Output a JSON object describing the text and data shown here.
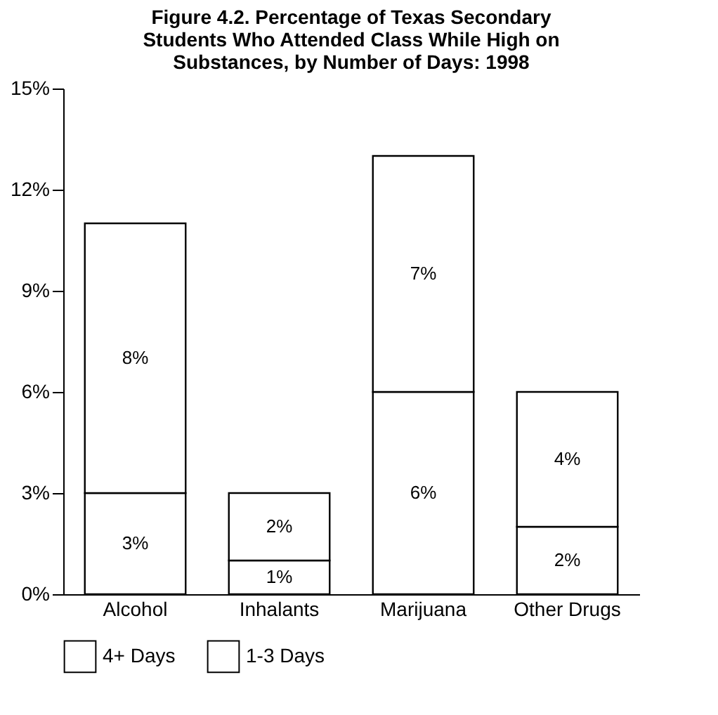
{
  "chart_data": {
    "type": "bar",
    "title": "Figure 4.2. Percentage of Texas Secondary Students Who Attended Class While High on Substances, by Number of Days: 1998",
    "categories": [
      "Alcohol",
      "Inhalants",
      "Marijuana",
      "Other Drugs"
    ],
    "stacked": true,
    "series": [
      {
        "name": "4+ Days",
        "color": "#ffffff",
        "values": [
          3,
          1,
          6,
          2
        ],
        "value_labels": [
          "3%",
          "1%",
          "6%",
          "2%"
        ]
      },
      {
        "name": "1-3 Days",
        "color": "#ffffff",
        "values": [
          8,
          2,
          7,
          4
        ],
        "value_labels": [
          "8%",
          "2%",
          "7%",
          "4%"
        ]
      }
    ],
    "ylim": [
      0,
      15
    ],
    "yticks": [
      {
        "value": 0,
        "label": "0%"
      },
      {
        "value": 3,
        "label": "3%"
      },
      {
        "value": 6,
        "label": "6%"
      },
      {
        "value": 9,
        "label": "9%"
      },
      {
        "value": 12,
        "label": "12%"
      },
      {
        "value": 15,
        "label": "15%"
      }
    ],
    "grid": false,
    "legend": "bottom"
  }
}
